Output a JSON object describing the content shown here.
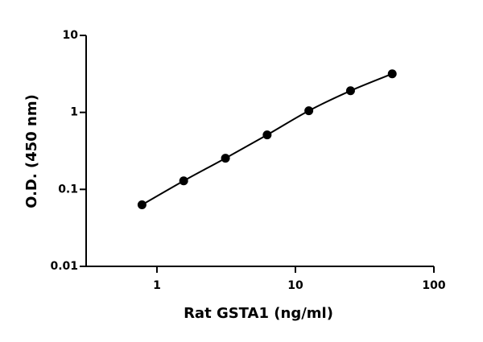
{
  "chart_data": {
    "type": "scatter",
    "xlabel": "Rat GSTA1 (ng/ml)",
    "ylabel": "O.D. (450 nm)",
    "x": [
      0.78,
      1.56,
      3.125,
      6.25,
      12.5,
      25,
      50
    ],
    "values": [
      0.063,
      0.129,
      0.254,
      0.51,
      1.05,
      1.91,
      3.17
    ],
    "color": "#000000",
    "fit_line": true,
    "xscale": "log",
    "yscale": "log",
    "xlim": [
      0.3,
      100
    ],
    "ylim": [
      0.01,
      10
    ],
    "xticks": [
      1,
      10,
      100
    ],
    "yticks": [
      0.01,
      0.1,
      1,
      10
    ]
  }
}
